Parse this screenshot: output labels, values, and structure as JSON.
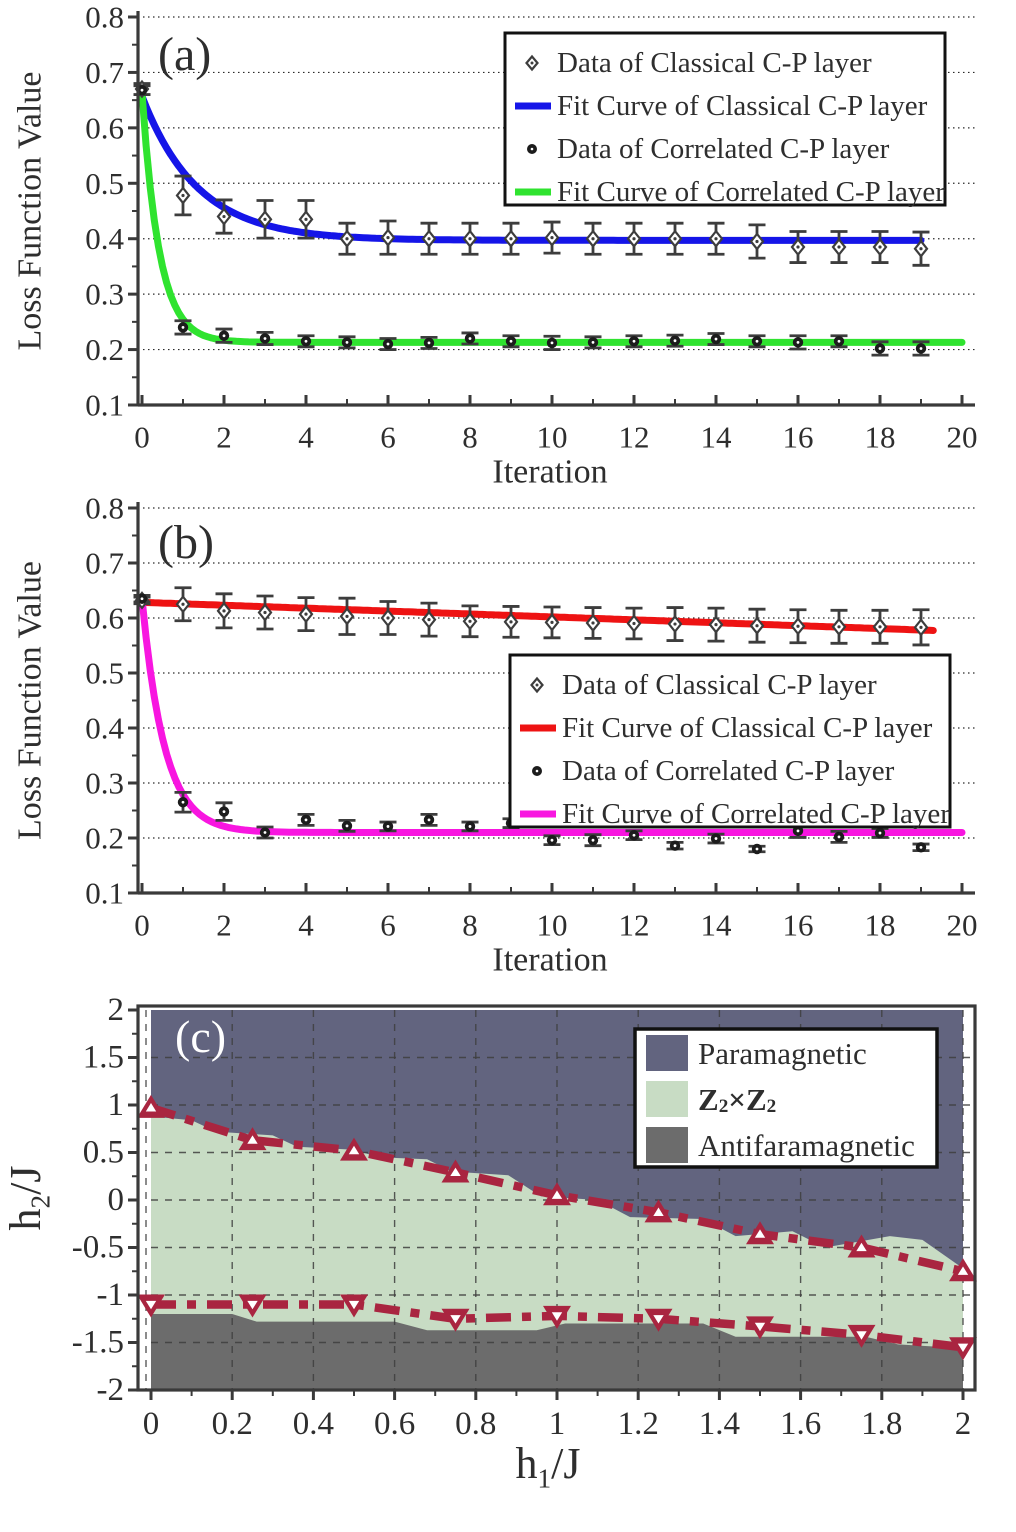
{
  "figure": {
    "background": "#ffffff",
    "text_color": "#2e2e2e",
    "spine_color": "#3a3a3a",
    "errorbar_color": "#3d3d3d"
  },
  "chart_data": [
    {
      "id": "a",
      "type": "line",
      "panel_label": "(a)",
      "xlabel": "Iteration",
      "ylabel": "Loss Function Value",
      "xlim": [
        0,
        20
      ],
      "ylim": [
        0.1,
        0.8
      ],
      "xticks": {
        "values": [
          0,
          2,
          4,
          6,
          8,
          10,
          12,
          14,
          16,
          18,
          20
        ],
        "labels": [
          "0",
          "2",
          "4",
          "6",
          "8",
          "10",
          "12",
          "14",
          "16",
          "18",
          "20"
        ]
      },
      "yticks": {
        "values": [
          0.1,
          0.2,
          0.3,
          0.4,
          0.5,
          0.6,
          0.7,
          0.8
        ],
        "labels": [
          "0.1",
          "0.2",
          "0.3",
          "0.4",
          "0.5",
          "0.6",
          "0.7",
          "0.8"
        ]
      },
      "grid": "horizontal-dotted",
      "legend_position": "top-right",
      "x": [
        0,
        1,
        2,
        3,
        4,
        5,
        6,
        7,
        8,
        9,
        10,
        11,
        12,
        13,
        14,
        15,
        16,
        17,
        18,
        19
      ],
      "series": [
        {
          "name": "Data of Classical C-P layer",
          "kind": "scatter",
          "marker": "open-diamond",
          "color": "#3d3d3d",
          "values": [
            0.67,
            0.478,
            0.44,
            0.435,
            0.435,
            0.4,
            0.402,
            0.4,
            0.4,
            0.4,
            0.402,
            0.4,
            0.4,
            0.4,
            0.4,
            0.395,
            0.385,
            0.385,
            0.385,
            0.382
          ],
          "errors": [
            0.01,
            0.035,
            0.03,
            0.034,
            0.034,
            0.028,
            0.03,
            0.028,
            0.028,
            0.028,
            0.028,
            0.028,
            0.028,
            0.028,
            0.028,
            0.03,
            0.028,
            0.028,
            0.028,
            0.03
          ]
        },
        {
          "name": "Fit Curve of Classical C-P layer",
          "kind": "fit",
          "color": "#1515e8",
          "fit": {
            "model": "exp",
            "y0": 0.397,
            "amplitude": 0.26,
            "tau": 1.35,
            "x_end": 19
          }
        },
        {
          "name": "Data of Correlated C-P layer",
          "kind": "scatter",
          "marker": "filled-circle",
          "color": "#1c1c1c",
          "values": [
            0.668,
            0.24,
            0.225,
            0.22,
            0.215,
            0.213,
            0.21,
            0.212,
            0.22,
            0.215,
            0.212,
            0.213,
            0.215,
            0.216,
            0.219,
            0.215,
            0.213,
            0.215,
            0.202,
            0.202
          ],
          "errors": [
            0.008,
            0.012,
            0.012,
            0.011,
            0.01,
            0.01,
            0.01,
            0.01,
            0.01,
            0.01,
            0.012,
            0.01,
            0.01,
            0.01,
            0.01,
            0.01,
            0.012,
            0.01,
            0.012,
            0.012
          ]
        },
        {
          "name": "Fit Curve of Correlated C-P layer",
          "kind": "fit",
          "color": "#2fe32f",
          "fit": {
            "model": "exp",
            "y0": 0.213,
            "amplitude": 0.45,
            "tau": 0.42,
            "x_end": 20
          }
        }
      ]
    },
    {
      "id": "b",
      "type": "line",
      "panel_label": "(b)",
      "xlabel": "Iteration",
      "ylabel": "Loss Function Value",
      "xlim": [
        0,
        20
      ],
      "ylim": [
        0.1,
        0.8
      ],
      "xticks": {
        "values": [
          0,
          2,
          4,
          6,
          8,
          10,
          12,
          14,
          16,
          18,
          20
        ],
        "labels": [
          "0",
          "2",
          "4",
          "6",
          "8",
          "10",
          "12",
          "14",
          "16",
          "18",
          "20"
        ]
      },
      "yticks": {
        "values": [
          0.1,
          0.2,
          0.3,
          0.4,
          0.5,
          0.6,
          0.7,
          0.8
        ],
        "labels": [
          "0.1",
          "0.2",
          "0.3",
          "0.4",
          "0.5",
          "0.6",
          "0.7",
          "0.8"
        ]
      },
      "grid": "horizontal-dotted",
      "legend_position": "middle-right",
      "x": [
        0,
        1,
        2,
        3,
        4,
        5,
        6,
        7,
        8,
        9,
        10,
        11,
        12,
        13,
        14,
        15,
        16,
        17,
        18,
        19
      ],
      "series": [
        {
          "name": "Data of Classical C-P layer",
          "kind": "scatter",
          "marker": "open-diamond",
          "color": "#3d3d3d",
          "values": [
            0.632,
            0.625,
            0.613,
            0.61,
            0.607,
            0.603,
            0.6,
            0.597,
            0.594,
            0.593,
            0.592,
            0.591,
            0.59,
            0.589,
            0.588,
            0.586,
            0.585,
            0.584,
            0.584,
            0.583
          ],
          "errors": [
            0.006,
            0.03,
            0.031,
            0.03,
            0.03,
            0.033,
            0.03,
            0.03,
            0.028,
            0.028,
            0.028,
            0.028,
            0.028,
            0.03,
            0.03,
            0.03,
            0.03,
            0.03,
            0.03,
            0.032
          ]
        },
        {
          "name": "Fit Curve of Classical C-P layer",
          "kind": "fit",
          "color": "#ee1313",
          "fit": {
            "model": "linear",
            "y0": 0.6285,
            "slope": -0.00265,
            "x_end": 19.3
          }
        },
        {
          "name": "Data of Correlated C-P layer",
          "kind": "scatter",
          "marker": "filled-circle",
          "color": "#1c1c1c",
          "values": [
            0.635,
            0.265,
            0.248,
            0.21,
            0.233,
            0.222,
            0.221,
            0.233,
            0.221,
            0.227,
            0.196,
            0.196,
            0.205,
            0.186,
            0.199,
            0.18,
            0.213,
            0.202,
            0.209,
            0.183
          ],
          "errors": [
            0.006,
            0.018,
            0.016,
            0.01,
            0.01,
            0.01,
            0.008,
            0.01,
            0.008,
            0.008,
            0.008,
            0.01,
            0.008,
            0.006,
            0.008,
            0.005,
            0.012,
            0.01,
            0.008,
            0.006
          ]
        },
        {
          "name": "Fit Curve of Correlated C-P layer",
          "kind": "fit",
          "color": "#f816e0",
          "fit": {
            "model": "exp",
            "y0": 0.21,
            "amplitude": 0.425,
            "tau": 0.55,
            "x_end": 20
          }
        }
      ]
    },
    {
      "id": "c",
      "type": "area",
      "panel_label": "(c)",
      "panel_label_color": "#ffffff",
      "xlabel_rich": [
        [
          "h",
          false
        ],
        [
          "1",
          true
        ],
        [
          "/J",
          false
        ]
      ],
      "ylabel_rich": [
        [
          "h",
          false
        ],
        [
          "2",
          true
        ],
        [
          "/J",
          false
        ]
      ],
      "xlim": [
        0,
        2
      ],
      "ylim": [
        -2,
        2
      ],
      "xticks": {
        "values": [
          0,
          0.2,
          0.4,
          0.6,
          0.8,
          1,
          1.2,
          1.4,
          1.6,
          1.8,
          2
        ],
        "labels": [
          "0",
          "0.2",
          "0.4",
          "0.6",
          "0.8",
          "1",
          "1.2",
          "1.4",
          "1.6",
          "1.8",
          "2"
        ]
      },
      "yticks": {
        "values": [
          2,
          1.5,
          1,
          0.5,
          0,
          -0.5,
          -1,
          -1.5,
          -2
        ],
        "labels": [
          "2",
          "1.5",
          "1",
          "0.5",
          "0",
          "-0.5",
          "-1",
          "-1.5",
          "-2"
        ]
      },
      "grid": "dashed-both",
      "regions": [
        {
          "name": "Paramagnetic",
          "color": "#62647f",
          "extent": "full"
        },
        {
          "name": "Z2xZ2",
          "color": "#c8dcc4",
          "top_edge": {
            "x": [
              0,
              0.1,
              0.16,
              0.3,
              0.36,
              0.5,
              0.56,
              0.68,
              0.74,
              0.88,
              0.96,
              1.1,
              1.18,
              1.36,
              1.44,
              1.58,
              1.66,
              1.82,
              1.9,
              2.0
            ],
            "y": [
              0.88,
              0.84,
              0.72,
              0.68,
              0.56,
              0.53,
              0.45,
              0.43,
              0.3,
              0.26,
              0.04,
              0.0,
              -0.18,
              -0.2,
              -0.38,
              -0.33,
              -0.5,
              -0.38,
              -0.42,
              -0.72
            ]
          }
        },
        {
          "name": "Antifaramagnetic",
          "color": "#6c6c6c",
          "top_edge": {
            "x": [
              0,
              0.2,
              0.26,
              0.6,
              0.68,
              0.95,
              1.02,
              1.36,
              1.44,
              1.76,
              1.84,
              2.0
            ],
            "y": [
              -1.2,
              -1.2,
              -1.28,
              -1.28,
              -1.37,
              -1.37,
              -1.3,
              -1.3,
              -1.44,
              -1.44,
              -1.52,
              -1.56
            ]
          }
        }
      ],
      "boundaries": [
        {
          "name": "upper-phase-boundary",
          "marker": "triangle-up",
          "color": "#a92540",
          "x": [
            0,
            0.25,
            0.5,
            0.75,
            1,
            1.25,
            1.5,
            1.75,
            2
          ],
          "y": [
            0.97,
            0.63,
            0.52,
            0.29,
            0.05,
            -0.13,
            -0.36,
            -0.5,
            -0.75
          ]
        },
        {
          "name": "lower-phase-boundary",
          "marker": "triangle-down",
          "color": "#a92540",
          "x": [
            0,
            0.25,
            0.5,
            0.75,
            1,
            1.25,
            1.5,
            1.75,
            2
          ],
          "y": [
            -1.1,
            -1.1,
            -1.1,
            -1.25,
            -1.22,
            -1.25,
            -1.33,
            -1.42,
            -1.55
          ]
        }
      ],
      "legend": {
        "items": [
          {
            "label_rich": [
              [
                "Paramagnetic",
                false
              ]
            ],
            "color": "#62647f",
            "bold": false
          },
          {
            "label_rich": [
              [
                "Z",
                false
              ],
              [
                "2",
                true
              ],
              [
                "×",
                false
              ],
              [
                "Z",
                false
              ],
              [
                "2",
                true
              ]
            ],
            "color": "#c8dcc4",
            "bold": true
          },
          {
            "label_rich": [
              [
                "Antifaramagnetic",
                false
              ]
            ],
            "color": "#6c6c6c",
            "bold": false
          }
        ]
      }
    }
  ]
}
